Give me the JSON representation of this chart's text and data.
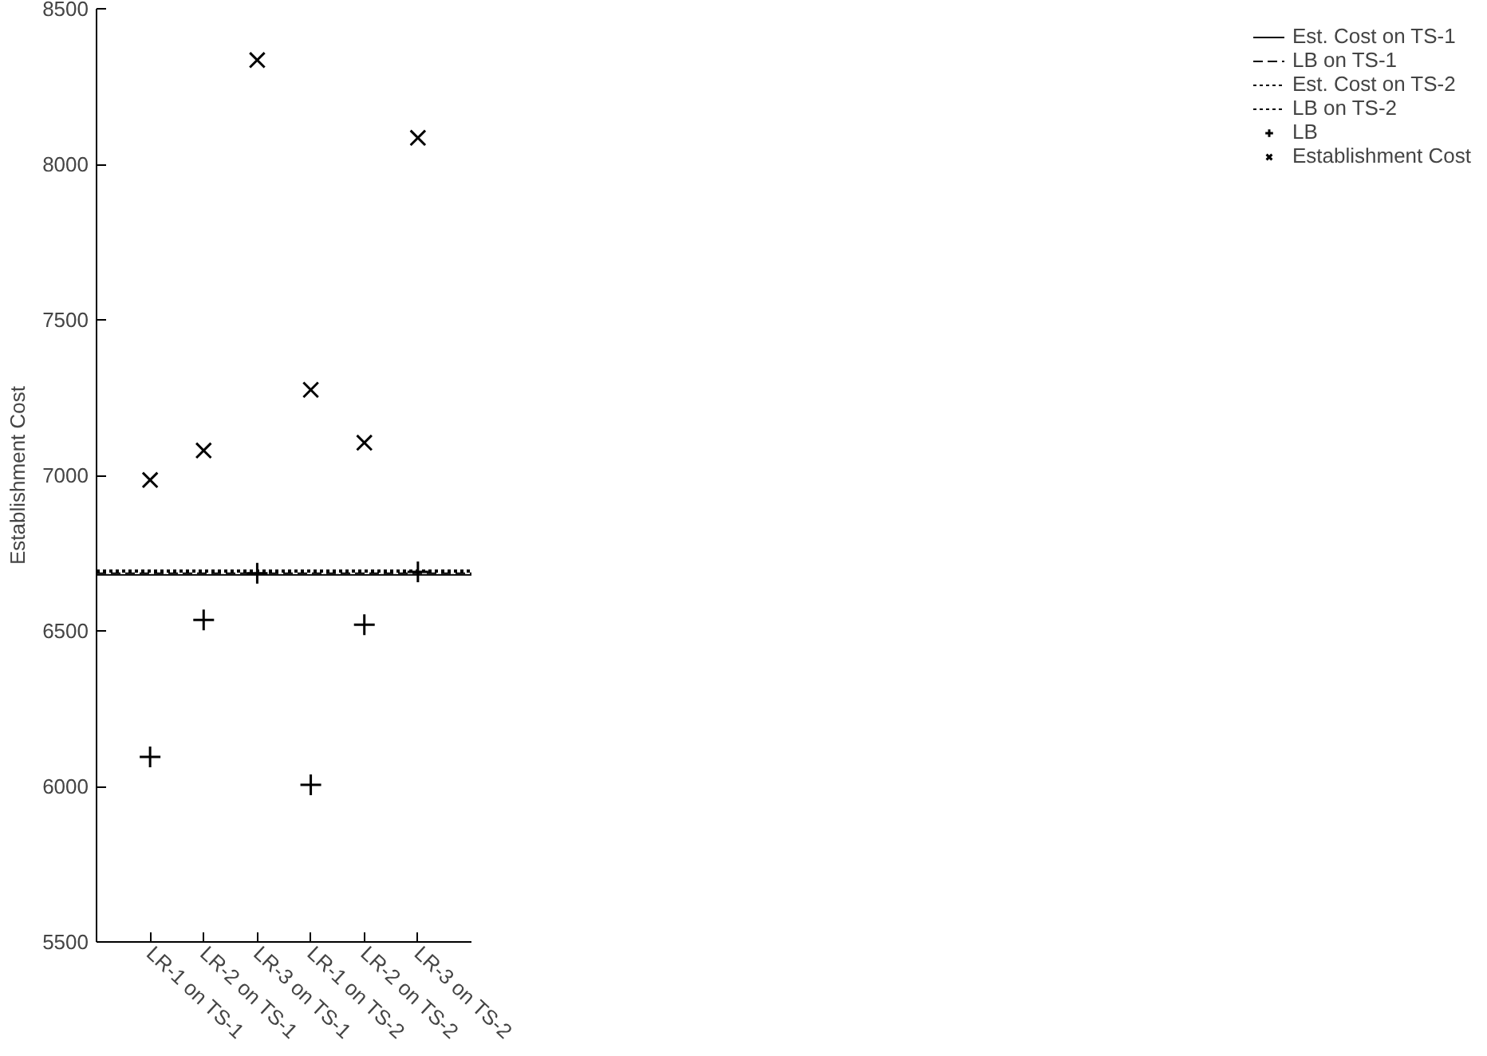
{
  "chart_data": {
    "type": "scatter",
    "ylabel": "Establishment Cost",
    "categories": [
      "LR-1 on TS-1",
      "LR-2 on TS-1",
      "LR-3 on TS-1",
      "LR-1 on TS-2",
      "LR-2 on TS-2",
      "LR-3 on TS-2"
    ],
    "ylim": [
      5500,
      8500
    ],
    "yticks": [
      5500,
      6000,
      6500,
      7000,
      7500,
      8000,
      8500
    ],
    "ref_lines": [
      {
        "axis": "y",
        "value": 6680,
        "label": "Est. Cost on TS-1",
        "line_style": "solid",
        "color": "#000000"
      },
      {
        "axis": "y",
        "value": 6685,
        "label": "LB on TS-1",
        "line_style": "dashed",
        "color": "#000000"
      },
      {
        "axis": "y",
        "value": 6695,
        "label": "Est. Cost on TS-2",
        "line_style": "dotted",
        "color": "#000000"
      },
      {
        "axis": "y",
        "value": 6690,
        "label": "LB on TS-2",
        "line_style": "dotted",
        "color": "#000000"
      }
    ],
    "series": [
      {
        "name": "LB",
        "color": "#000000",
        "marker": "cross",
        "values": [
          6095,
          6535,
          6685,
          6005,
          6520,
          6690
        ]
      },
      {
        "name": "Establishment Cost",
        "color": "#000000",
        "marker": "x",
        "values": [
          6985,
          7080,
          8335,
          7275,
          7105,
          8085
        ]
      }
    ],
    "legend": "right",
    "grid": false
  }
}
